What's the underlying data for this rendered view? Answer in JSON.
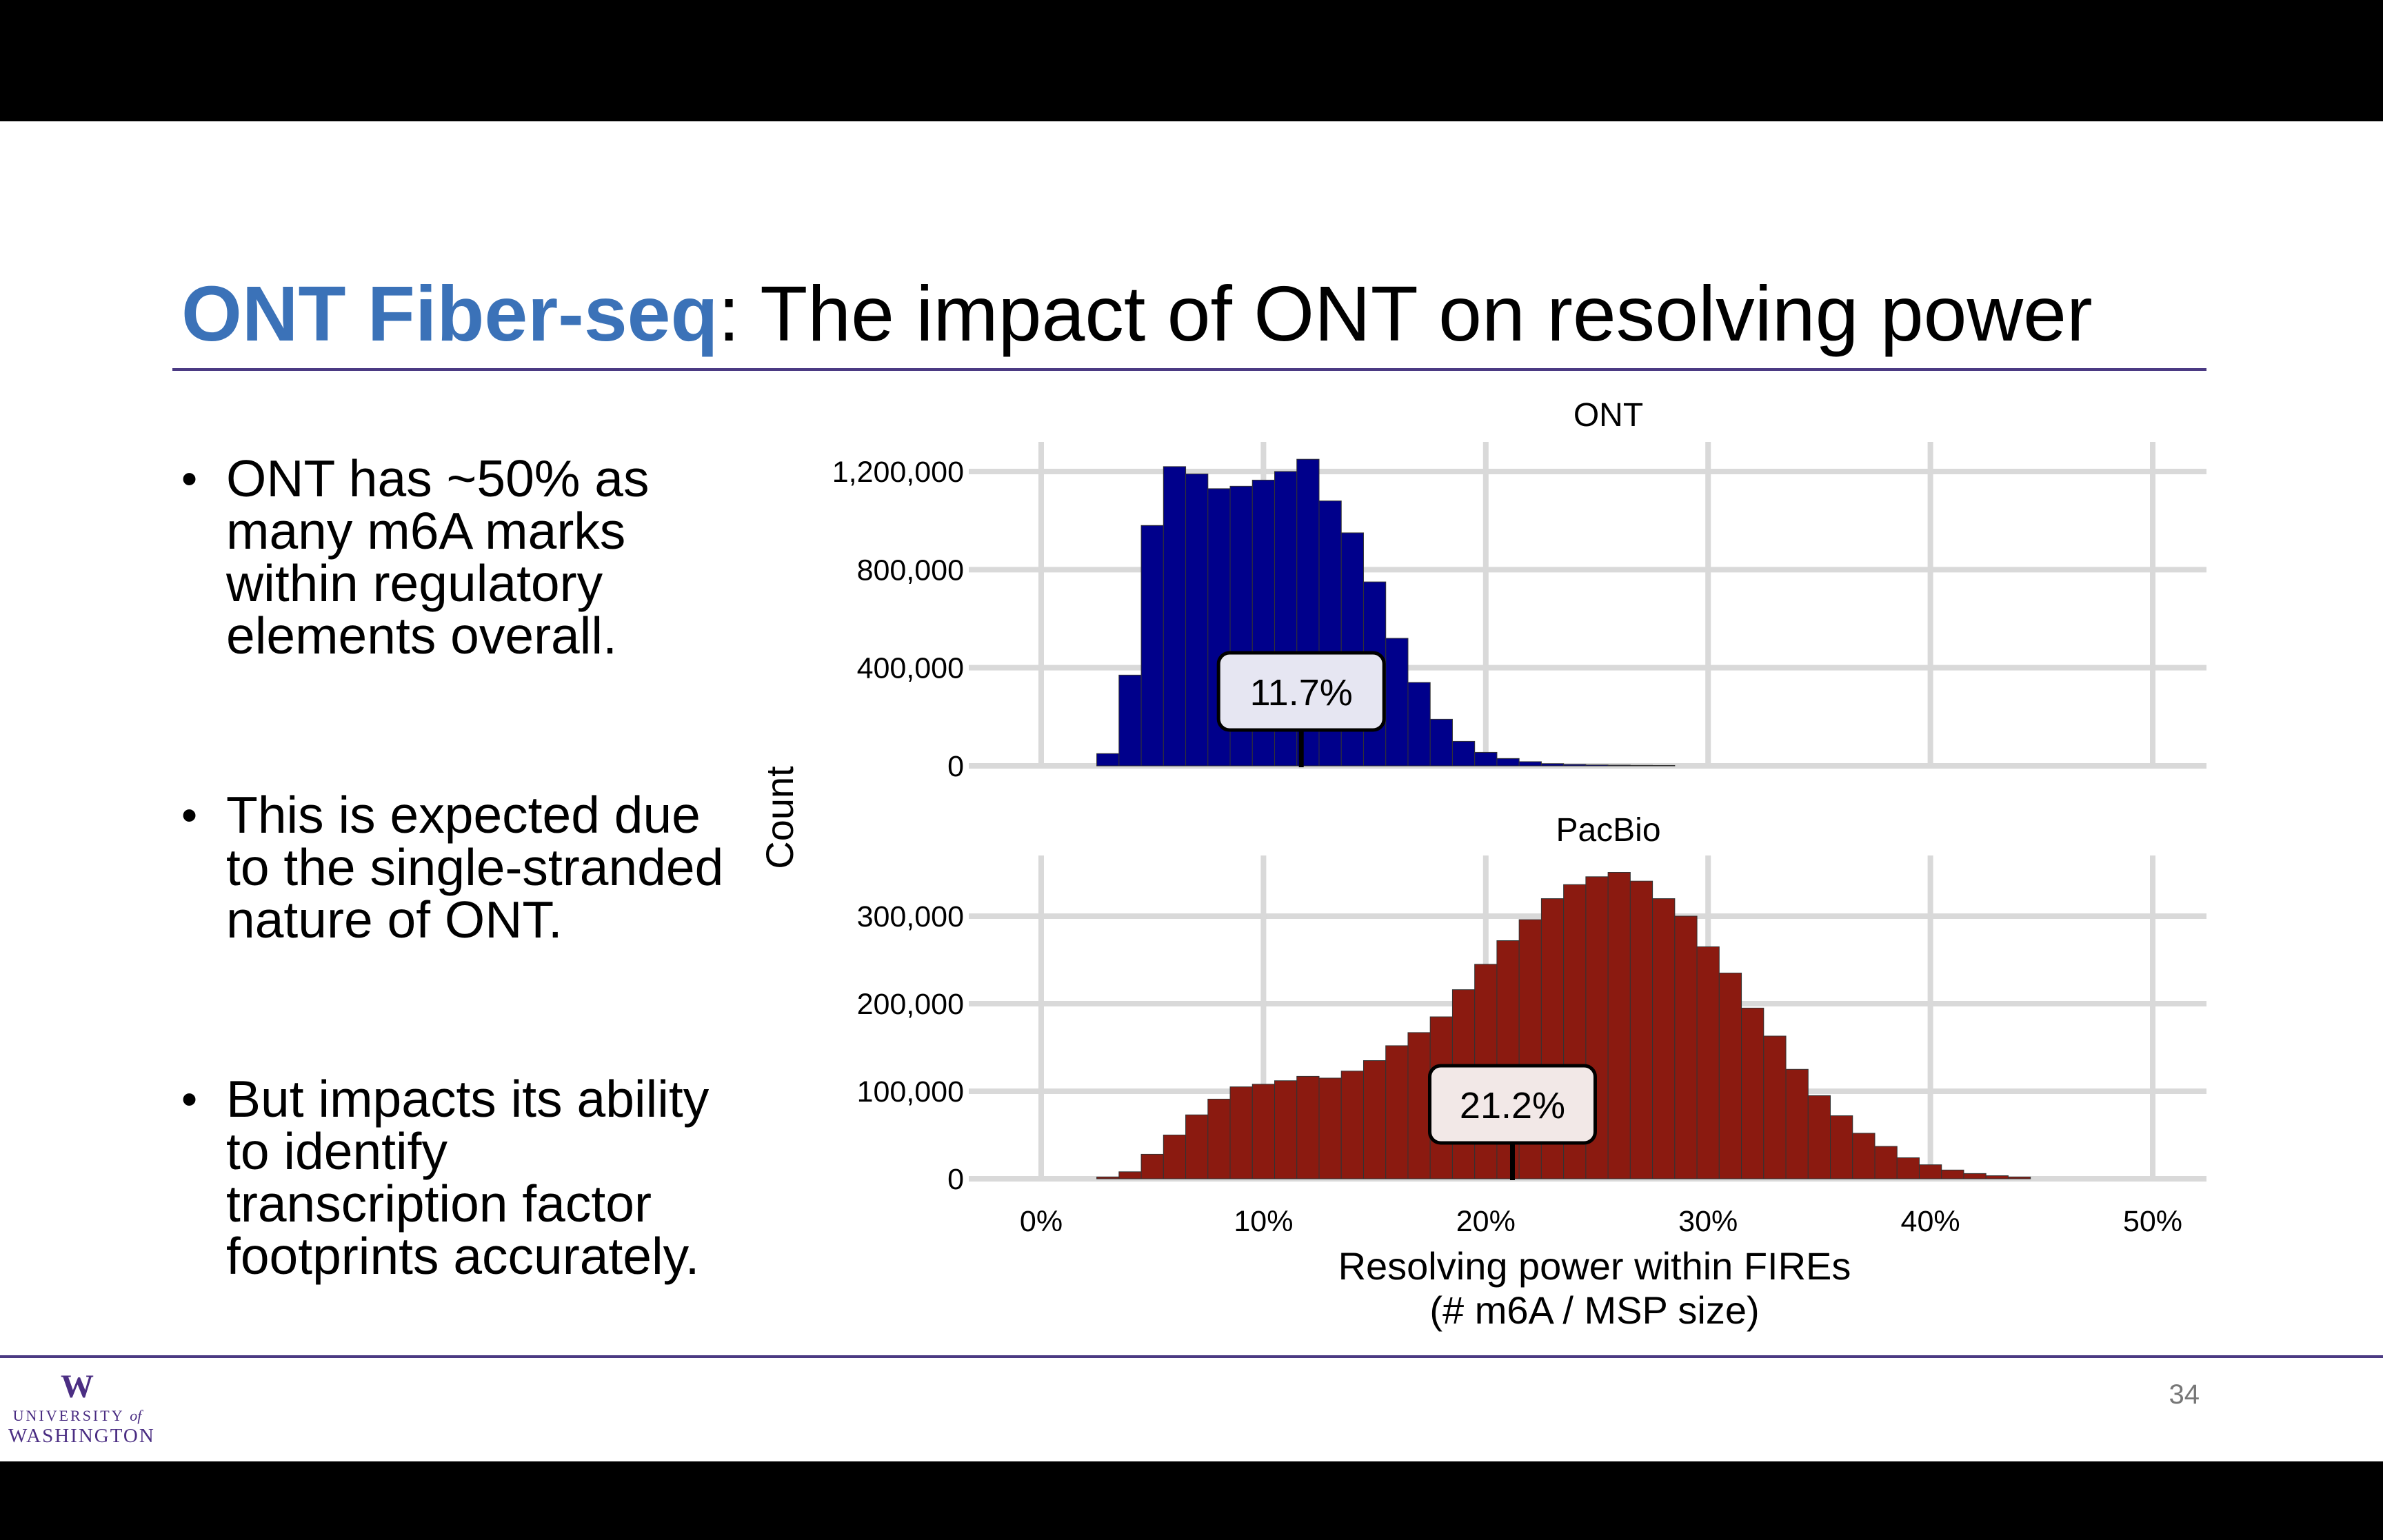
{
  "slide": {
    "title_accent": "ONT Fiber-seq",
    "title_rest": ": The impact of ONT on resolving power",
    "bullets": [
      [
        "ONT has ~50% as",
        "many m6A marks",
        "within regulatory",
        "elements overall."
      ],
      [
        "This is expected due",
        "to the single-stranded",
        "nature of ONT."
      ],
      [
        "But impacts its ability",
        "to identify",
        "transcription factor",
        "footprints accurately."
      ]
    ],
    "bullet_symbol": "•",
    "page_number": "34",
    "logo": {
      "mark": "W",
      "line1": "UNIVERSITY",
      "line1_of": "of",
      "line2": "WASHINGTON"
    },
    "colors": {
      "accent": "#3b72b8",
      "rule": "#4b3a83",
      "uw_purple": "#4b2e83"
    }
  },
  "chart_data": {
    "type": "bar",
    "ylabel": "Count",
    "xlabel_lines": [
      "Resolving power within FIREs",
      "(# m6A / MSP size)"
    ],
    "xlim": [
      0,
      0.5
    ],
    "xticks": [
      0,
      0.1,
      0.2,
      0.3,
      0.4,
      0.5
    ],
    "xtick_labels": [
      "0%",
      "10%",
      "20%",
      "30%",
      "40%",
      "50%"
    ],
    "bin_width": 0.01,
    "grid": true,
    "panels": [
      {
        "name": "ONT",
        "color": "#00008b",
        "ylim": [
          0,
          1250000
        ],
        "yticks": [
          0,
          400000,
          800000,
          1200000
        ],
        "ytick_labels": [
          "0",
          "400,000",
          "800,000",
          "1,200,000"
        ],
        "bin_starts": [
          0.025,
          0.035,
          0.045,
          0.055,
          0.065,
          0.075,
          0.085,
          0.095,
          0.105,
          0.115,
          0.125,
          0.135,
          0.145,
          0.155,
          0.165,
          0.175,
          0.185,
          0.195,
          0.205,
          0.215,
          0.225,
          0.235,
          0.245,
          0.255,
          0.265,
          0.275
        ],
        "values": [
          50000,
          370000,
          980000,
          1220000,
          1190000,
          1130000,
          1140000,
          1165000,
          1200000,
          1250000,
          1080000,
          950000,
          750000,
          520000,
          340000,
          190000,
          100000,
          55000,
          30000,
          17000,
          9000,
          6000,
          4000,
          3000,
          2000,
          1500
        ],
        "median_label": "11.7%",
        "median": 0.117
      },
      {
        "name": "PacBio",
        "color": "#8b1a10",
        "ylim": [
          0,
          360000
        ],
        "yticks": [
          0,
          100000,
          200000,
          300000
        ],
        "ytick_labels": [
          "0",
          "100,000",
          "200,000",
          "300,000"
        ],
        "bin_starts": [
          0.025,
          0.035,
          0.045,
          0.055,
          0.065,
          0.075,
          0.085,
          0.095,
          0.105,
          0.115,
          0.125,
          0.135,
          0.145,
          0.155,
          0.165,
          0.175,
          0.185,
          0.195,
          0.205,
          0.215,
          0.225,
          0.235,
          0.245,
          0.255,
          0.265,
          0.275,
          0.285,
          0.295,
          0.305,
          0.315,
          0.325,
          0.335,
          0.345,
          0.355,
          0.365,
          0.375,
          0.385,
          0.395,
          0.405,
          0.415,
          0.425,
          0.435
        ],
        "values": [
          2000,
          8000,
          28000,
          50000,
          73000,
          91000,
          105000,
          108000,
          112000,
          117000,
          115000,
          123000,
          135000,
          152000,
          167000,
          185000,
          216000,
          245000,
          272000,
          296000,
          320000,
          336000,
          345000,
          350000,
          340000,
          320000,
          300000,
          265000,
          235000,
          195000,
          163000,
          125000,
          95000,
          72000,
          52000,
          37000,
          24000,
          16000,
          10000,
          6000,
          3500,
          2000
        ],
        "median_label": "21.2%",
        "median": 0.212
      }
    ]
  }
}
